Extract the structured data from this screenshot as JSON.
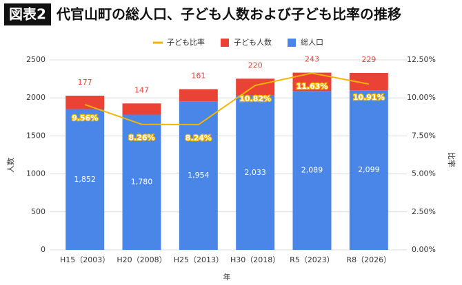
{
  "badge": "図表2",
  "chart_data": {
    "type": "bar",
    "stacked": true,
    "title": "代官山町の総人口、子ども人数および子ども比率の推移",
    "xlabel": "年",
    "ylabel": "人数",
    "y2label": "比率",
    "categories": [
      "H15（2003）",
      "H20（2008）",
      "H25（2013）",
      "H30（2018）",
      "R5（2023）",
      "R8（2026）"
    ],
    "series": [
      {
        "name": "総人口",
        "color": "#4a86e8",
        "values": [
          1852,
          1780,
          1954,
          2033,
          2089,
          2099
        ],
        "value_labels": [
          "1,852",
          "1,780",
          "1,954",
          "2,033",
          "2,089",
          "2,099"
        ]
      },
      {
        "name": "子ども人数",
        "color": "#ea4335",
        "values": [
          177,
          147,
          161,
          220,
          243,
          229
        ]
      },
      {
        "name": "子ども比率",
        "type": "line",
        "axis": "y2",
        "color": "#f4b400",
        "values": [
          9.56,
          8.26,
          8.24,
          10.82,
          11.63,
          10.91
        ],
        "value_labels": [
          "9.56%",
          "8.26%",
          "8.24%",
          "10.82%",
          "11.63%",
          "10.91%"
        ]
      }
    ],
    "ylim": [
      0,
      2500
    ],
    "yticks": [
      0,
      500,
      1000,
      1500,
      2000,
      2500
    ],
    "y2lim": [
      0,
      12.5
    ],
    "y2ticks": [
      {
        "value": 0,
        "label": "0.00%"
      },
      {
        "value": 2.5,
        "label": "2.50%"
      },
      {
        "value": 5,
        "label": "5.00%"
      },
      {
        "value": 7.5,
        "label": "7.50%"
      },
      {
        "value": 10,
        "label": "10.00%"
      },
      {
        "value": 12.5,
        "label": "12.50%"
      }
    ],
    "grid": true,
    "legend": "top"
  }
}
